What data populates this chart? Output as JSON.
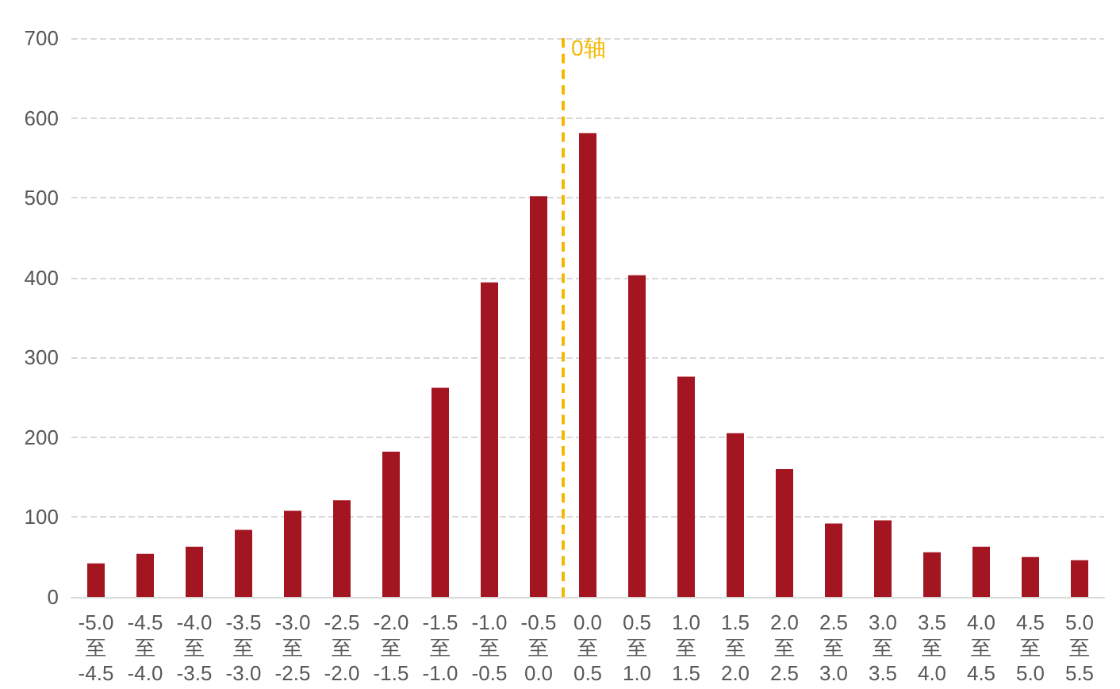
{
  "chart_data": {
    "type": "bar",
    "categories": [
      "-5.0\n至\n-4.5",
      "-4.5\n至\n-4.0",
      "-4.0\n至\n-3.5",
      "-3.5\n至\n-3.0",
      "-3.0\n至\n-2.5",
      "-2.5\n至\n-2.0",
      "-2.0\n至\n-1.5",
      "-1.5\n至\n-1.0",
      "-1.0\n至\n-0.5",
      "-0.5\n至\n0.0",
      "0.0\n至\n0.5",
      "0.5\n至\n1.0",
      "1.0\n至\n1.5",
      "1.5\n至\n2.0",
      "2.0\n至\n2.5",
      "2.5\n至\n3.0",
      "3.0\n至\n3.5",
      "3.5\n至\n4.0",
      "4.0\n至\n4.5",
      "4.5\n至\n5.0",
      "5.0\n至\n5.5"
    ],
    "values": [
      42,
      54,
      63,
      84,
      108,
      121,
      182,
      262,
      394,
      502,
      581,
      403,
      276,
      205,
      160,
      92,
      96,
      56,
      63,
      50,
      46
    ],
    "color": "#a31621",
    "ylim": [
      0,
      700
    ],
    "yticks": [
      0,
      100,
      200,
      300,
      400,
      500,
      600,
      700
    ],
    "grid": "y",
    "ref_lines": [
      {
        "axis": "x",
        "value": "0.0\n至\n0.5",
        "label": "0轴",
        "color": "#f5b800",
        "line_style": "dashed"
      }
    ]
  }
}
